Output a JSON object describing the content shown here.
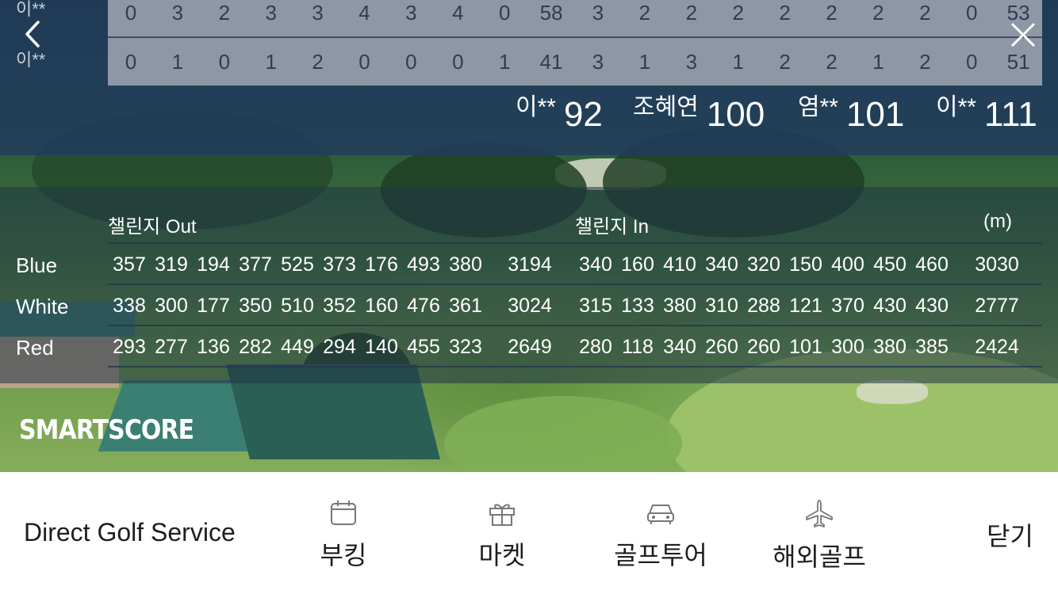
{
  "top_scores": {
    "player_names": [
      "이**",
      "이**"
    ],
    "row1": [
      "0",
      "3",
      "2",
      "3",
      "3",
      "4",
      "3",
      "4",
      "0",
      "58",
      "3",
      "2",
      "2",
      "2",
      "2",
      "2",
      "2",
      "2",
      "0",
      "53"
    ],
    "row2": [
      "0",
      "1",
      "0",
      "1",
      "2",
      "0",
      "0",
      "0",
      "1",
      "41",
      "3",
      "1",
      "3",
      "1",
      "2",
      "2",
      "1",
      "2",
      "0",
      "51"
    ]
  },
  "totals": [
    {
      "name": "이**",
      "score": "92"
    },
    {
      "name": "조혜연",
      "score": "100"
    },
    {
      "name": "염**",
      "score": "101"
    },
    {
      "name": "이**",
      "score": "111"
    }
  ],
  "course": {
    "out_label": "챌린지 Out",
    "in_label": "챌린지 In",
    "unit": "(m)",
    "tees": [
      {
        "name": "Blue",
        "values": [
          "357",
          "319",
          "194",
          "377",
          "525",
          "373",
          "176",
          "493",
          "380",
          "3194",
          "340",
          "160",
          "410",
          "340",
          "320",
          "150",
          "400",
          "450",
          "460",
          "3030"
        ]
      },
      {
        "name": "White",
        "values": [
          "338",
          "300",
          "177",
          "350",
          "510",
          "352",
          "160",
          "476",
          "361",
          "3024",
          "315",
          "133",
          "380",
          "310",
          "288",
          "121",
          "370",
          "430",
          "430",
          "2777"
        ]
      },
      {
        "name": "Red",
        "values": [
          "293",
          "277",
          "136",
          "282",
          "449",
          "294",
          "140",
          "455",
          "323",
          "2649",
          "280",
          "118",
          "340",
          "260",
          "260",
          "101",
          "300",
          "380",
          "385",
          "2424"
        ]
      }
    ]
  },
  "brand": "SMARTSCORE",
  "bottom": {
    "title": "Direct Golf Service",
    "nav": [
      {
        "label": "부킹",
        "icon": "calendar-icon"
      },
      {
        "label": "마켓",
        "icon": "gift-icon"
      },
      {
        "label": "골프투어",
        "icon": "car-icon"
      },
      {
        "label": "해외골프",
        "icon": "airplane-icon"
      }
    ],
    "close_label": "닫기"
  }
}
